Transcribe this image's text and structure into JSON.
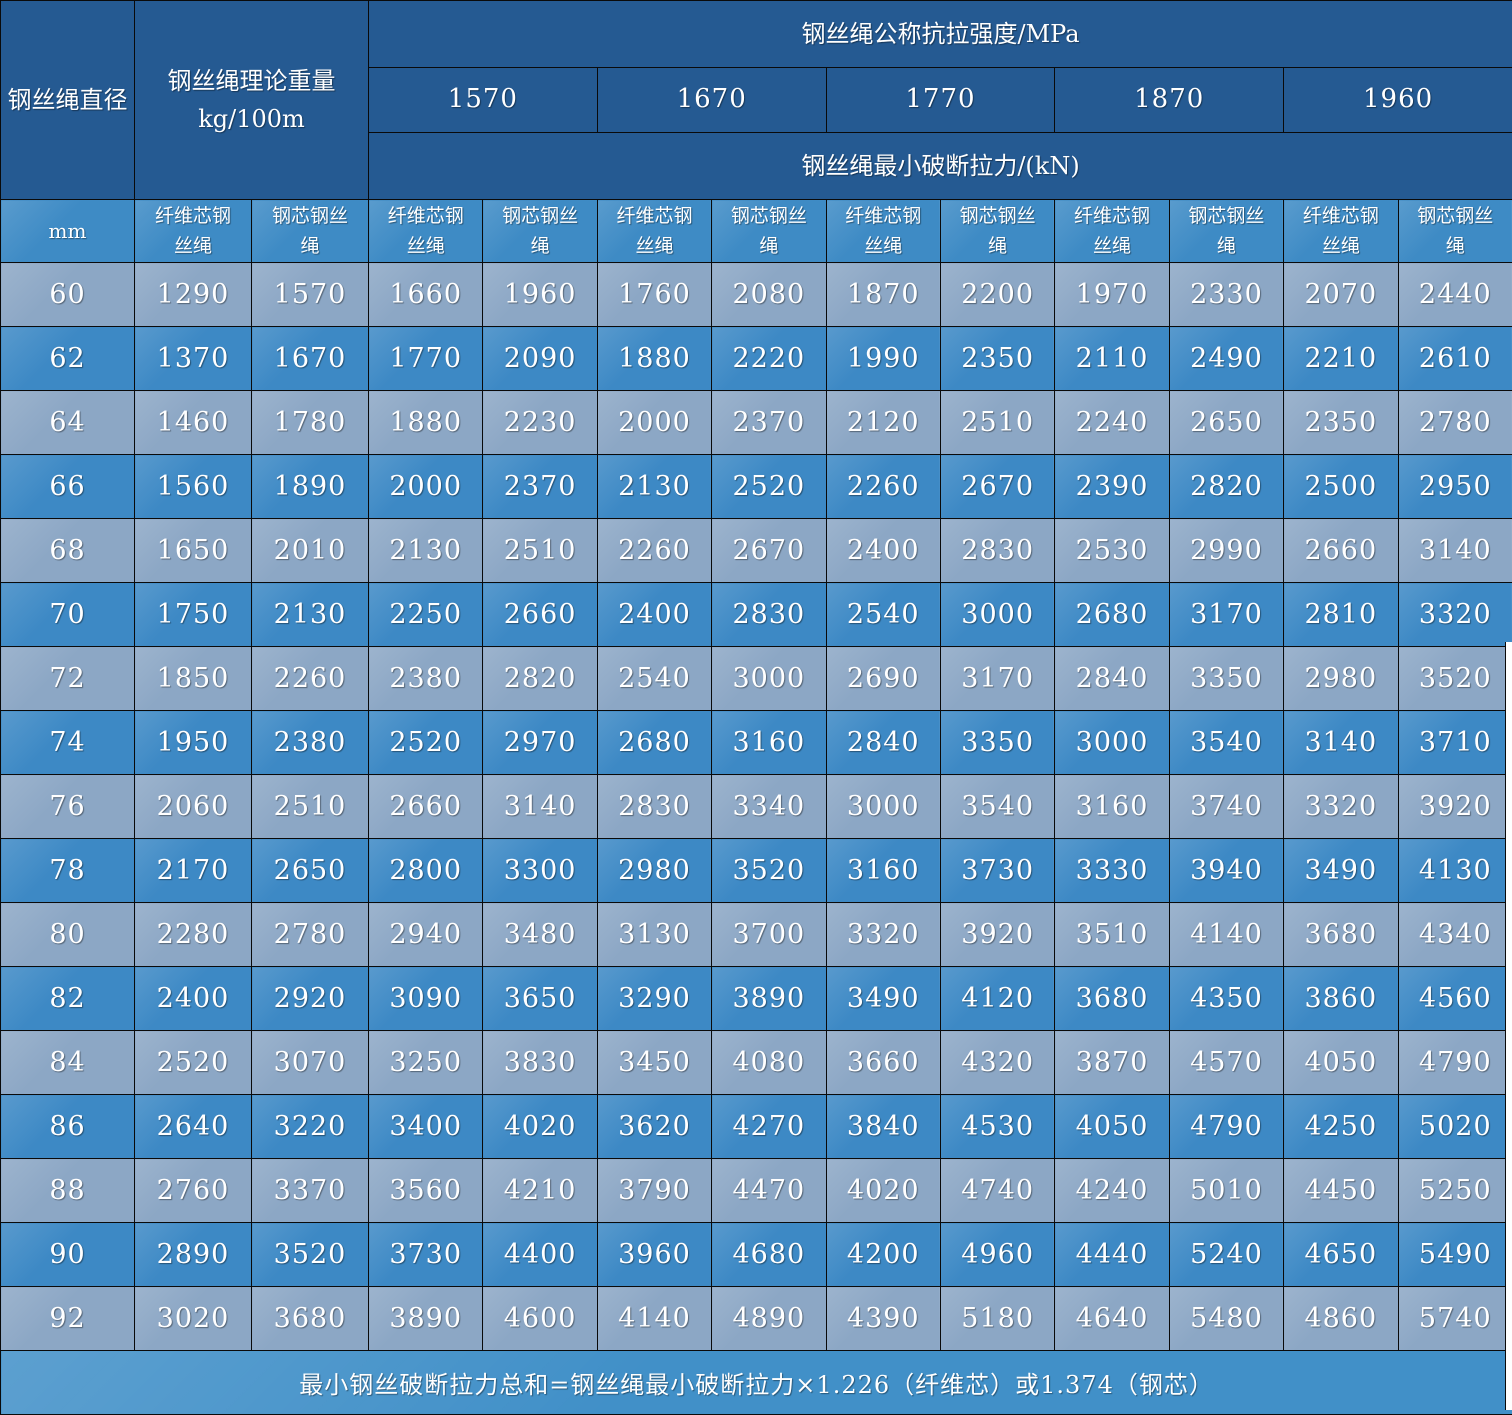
{
  "palette": {
    "header_dark": "#255A92",
    "header_medium": "#3E8BC5",
    "row_light": "#8CA7C5",
    "row_dark": "#3D89C5",
    "footer_bg": "#4190C8",
    "border": "#0A0A0A",
    "text": "#FFFFFF"
  },
  "header": {
    "diameter_label": "钢丝绳直径",
    "diameter_unit": "mm",
    "weight_label": "钢丝绳理论重量\nkg/100m",
    "strength_title": "钢丝绳公称抗拉强度/MPa",
    "strength_grades": [
      "1570",
      "1670",
      "1770",
      "1870",
      "1960"
    ],
    "breaking_title": "钢丝绳最小破断拉力/(kN)",
    "fiber_core_label": "纤维芯钢\n丝绳",
    "steel_core_label": "钢芯钢丝\n绳"
  },
  "rows": [
    {
      "mm": "60",
      "values": [
        "1290",
        "1570",
        "1660",
        "1960",
        "1760",
        "2080",
        "1870",
        "2200",
        "1970",
        "2330",
        "2070",
        "2440"
      ]
    },
    {
      "mm": "62",
      "values": [
        "1370",
        "1670",
        "1770",
        "2090",
        "1880",
        "2220",
        "1990",
        "2350",
        "2110",
        "2490",
        "2210",
        "2610"
      ]
    },
    {
      "mm": "64",
      "values": [
        "1460",
        "1780",
        "1880",
        "2230",
        "2000",
        "2370",
        "2120",
        "2510",
        "2240",
        "2650",
        "2350",
        "2780"
      ]
    },
    {
      "mm": "66",
      "values": [
        "1560",
        "1890",
        "2000",
        "2370",
        "2130",
        "2520",
        "2260",
        "2670",
        "2390",
        "2820",
        "2500",
        "2950"
      ]
    },
    {
      "mm": "68",
      "values": [
        "1650",
        "2010",
        "2130",
        "2510",
        "2260",
        "2670",
        "2400",
        "2830",
        "2530",
        "2990",
        "2660",
        "3140"
      ]
    },
    {
      "mm": "70",
      "values": [
        "1750",
        "2130",
        "2250",
        "2660",
        "2400",
        "2830",
        "2540",
        "3000",
        "2680",
        "3170",
        "2810",
        "3320"
      ]
    },
    {
      "mm": "72",
      "values": [
        "1850",
        "2260",
        "2380",
        "2820",
        "2540",
        "3000",
        "2690",
        "3170",
        "2840",
        "3350",
        "2980",
        "3520"
      ]
    },
    {
      "mm": "74",
      "values": [
        "1950",
        "2380",
        "2520",
        "2970",
        "2680",
        "3160",
        "2840",
        "3350",
        "3000",
        "3540",
        "3140",
        "3710"
      ]
    },
    {
      "mm": "76",
      "values": [
        "2060",
        "2510",
        "2660",
        "3140",
        "2830",
        "3340",
        "3000",
        "3540",
        "3160",
        "3740",
        "3320",
        "3920"
      ]
    },
    {
      "mm": "78",
      "values": [
        "2170",
        "2650",
        "2800",
        "3300",
        "2980",
        "3520",
        "3160",
        "3730",
        "3330",
        "3940",
        "3490",
        "4130"
      ]
    },
    {
      "mm": "80",
      "values": [
        "2280",
        "2780",
        "2940",
        "3480",
        "3130",
        "3700",
        "3320",
        "3920",
        "3510",
        "4140",
        "3680",
        "4340"
      ]
    },
    {
      "mm": "82",
      "values": [
        "2400",
        "2920",
        "3090",
        "3650",
        "3290",
        "3890",
        "3490",
        "4120",
        "3680",
        "4350",
        "3860",
        "4560"
      ]
    },
    {
      "mm": "84",
      "values": [
        "2520",
        "3070",
        "3250",
        "3830",
        "3450",
        "4080",
        "3660",
        "4320",
        "3870",
        "4570",
        "4050",
        "4790"
      ]
    },
    {
      "mm": "86",
      "values": [
        "2640",
        "3220",
        "3400",
        "4020",
        "3620",
        "4270",
        "3840",
        "4530",
        "4050",
        "4790",
        "4250",
        "5020"
      ]
    },
    {
      "mm": "88",
      "values": [
        "2760",
        "3370",
        "3560",
        "4210",
        "3790",
        "4470",
        "4020",
        "4740",
        "4240",
        "5010",
        "4450",
        "5250"
      ]
    },
    {
      "mm": "90",
      "values": [
        "2890",
        "3520",
        "3730",
        "4400",
        "3960",
        "4680",
        "4200",
        "4960",
        "4440",
        "5240",
        "4650",
        "5490"
      ]
    },
    {
      "mm": "92",
      "values": [
        "3020",
        "3680",
        "3890",
        "4600",
        "4140",
        "4890",
        "4390",
        "5180",
        "4640",
        "5480",
        "4860",
        "5740"
      ]
    }
  ],
  "footer": {
    "note": "最小钢丝破断拉力总和=钢丝绳最小破断拉力×1.226（纤维芯）或1.374（钢芯）"
  }
}
